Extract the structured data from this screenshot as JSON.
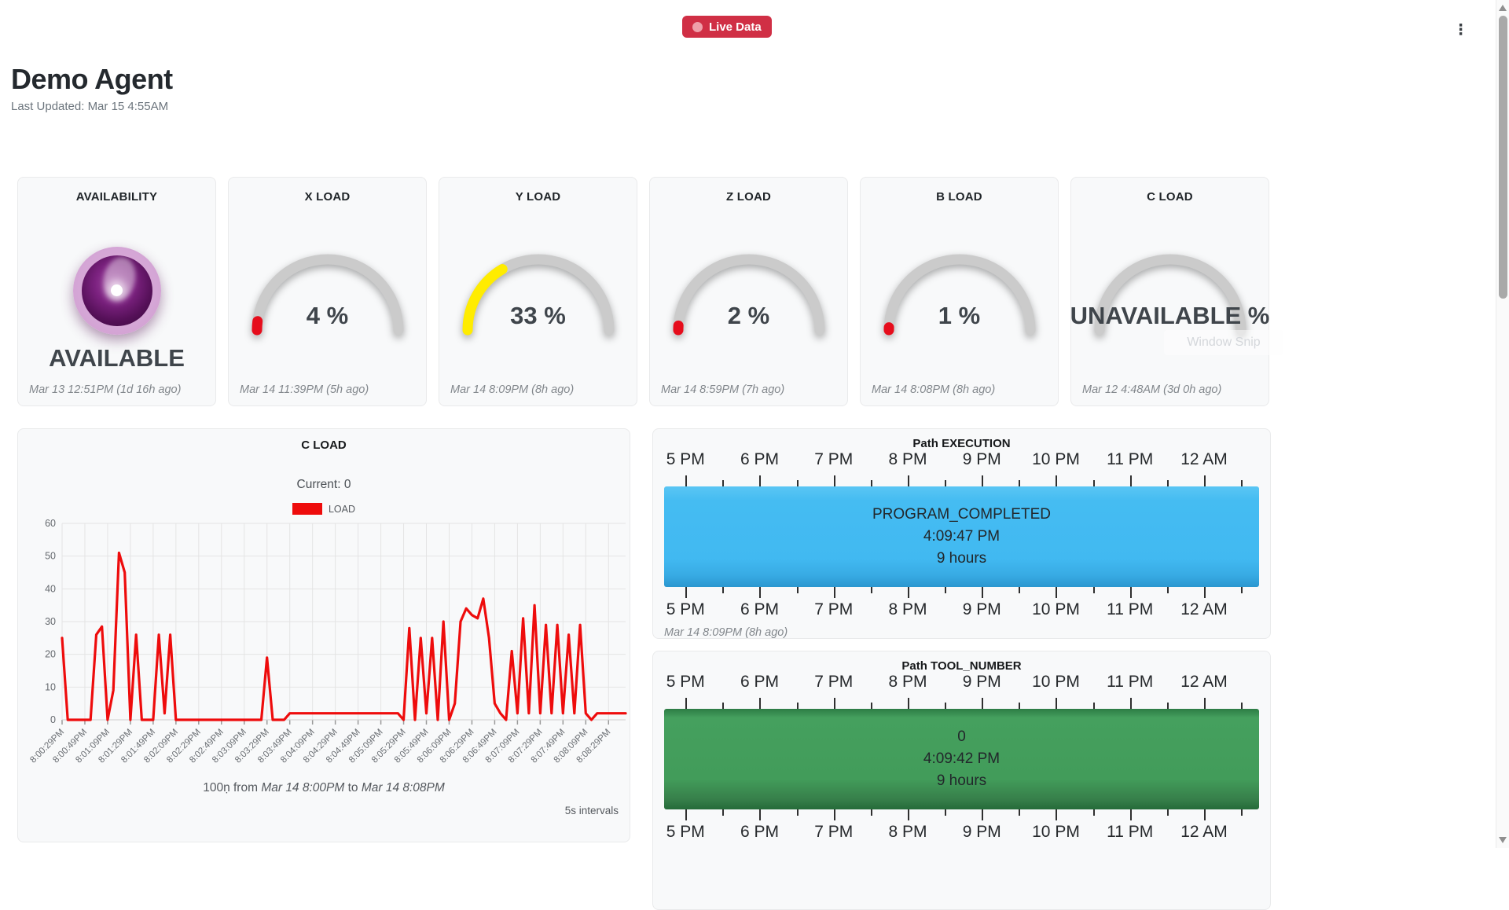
{
  "header": {
    "live_badge": "Live Data",
    "title": "Demo Agent",
    "last_updated": "Last Updated: Mar 15 4:55AM",
    "menu_icon": "kebab-menu",
    "badge_color": "#d02f45"
  },
  "gauges": [
    {
      "title": "AVAILABILITY",
      "type": "orb",
      "value_label": "AVAILABLE",
      "timestamp": "Mar 13 12:51PM (1d 16h ago)"
    },
    {
      "title": "X LOAD",
      "type": "arc",
      "percent": 4,
      "value_label": "4 %",
      "arc_color": "#e60d1c",
      "timestamp": "Mar 14 11:39PM (5h ago)"
    },
    {
      "title": "Y LOAD",
      "type": "arc",
      "percent": 33,
      "value_label": "33 %",
      "arc_color": "#ffec00",
      "timestamp": "Mar 14 8:09PM (8h ago)"
    },
    {
      "title": "Z LOAD",
      "type": "arc",
      "percent": 2,
      "value_label": "2 %",
      "arc_color": "#e60d1c",
      "timestamp": "Mar 14 8:59PM (7h ago)"
    },
    {
      "title": "B LOAD",
      "type": "arc",
      "percent": 1,
      "value_label": "1 %",
      "arc_color": "#e60d1c",
      "timestamp": "Mar 14 8:08PM (8h ago)"
    },
    {
      "title": "C LOAD",
      "type": "arc",
      "percent": 0,
      "value_label": "UNAVAILABLE %",
      "arc_color": null,
      "timestamp": "Mar 12 4:48AM (3d 0h ago)",
      "artifact_text": "Window Snip"
    }
  ],
  "chart_data": {
    "type": "line",
    "title": "C LOAD",
    "current_label": "Current: 0",
    "legend": [
      {
        "label": "LOAD",
        "color": "#ee0c0c"
      }
    ],
    "legend_position": "top",
    "grid": true,
    "ylim": [
      0,
      60
    ],
    "yticks": [
      0,
      10,
      20,
      30,
      40,
      50,
      60
    ],
    "points_per_tick": 4,
    "x_tick_labels": [
      "8:00:29PM",
      "8:00:49PM",
      "8:01:09PM",
      "8:01:29PM",
      "8:01:49PM",
      "8:02:09PM",
      "8:02:29PM",
      "8:02:49PM",
      "8:03:09PM",
      "8:03:29PM",
      "8:03:49PM",
      "8:04:09PM",
      "8:04:29PM",
      "8:04:49PM",
      "8:05:09PM",
      "8:05:29PM",
      "8:05:49PM",
      "8:06:09PM",
      "8:06:29PM",
      "8:06:49PM",
      "8:07:09PM",
      "8:07:29PM",
      "8:07:49PM",
      "8:08:09PM",
      "8:08:29PM"
    ],
    "values": [
      25,
      0,
      0,
      0,
      0,
      0,
      26,
      28.5,
      0,
      9,
      51,
      45,
      0,
      26,
      0,
      0,
      0,
      26,
      2,
      26,
      0,
      0,
      0,
      0,
      0,
      0,
      0,
      0,
      0,
      0,
      0,
      0,
      0,
      0,
      0,
      0,
      19,
      0,
      0,
      0,
      2,
      2,
      2,
      2,
      2,
      2,
      2,
      2,
      2,
      2,
      2,
      2,
      2,
      2,
      2,
      2,
      2,
      2,
      2,
      2,
      0,
      28,
      0,
      25,
      2,
      25,
      0,
      30,
      0,
      5,
      30,
      34,
      32,
      31,
      37,
      25,
      5,
      2,
      0,
      21,
      2,
      31,
      2,
      35,
      2,
      29,
      2,
      29,
      2,
      26,
      2,
      29,
      2,
      0,
      2,
      2,
      2,
      2,
      2,
      2
    ],
    "footer": {
      "prefix": "100ṇ from ",
      "from_date": "Mar 14 8:00PM",
      "mid": " to ",
      "to_date": "Mar 14 8:08PM"
    },
    "interval_note": "5s intervals"
  },
  "timelines": [
    {
      "title": "Path EXECUTION",
      "axis_labels": [
        "5 PM",
        "6 PM",
        "7 PM",
        "8 PM",
        "9 PM",
        "10 PM",
        "11 PM",
        "12 AM"
      ],
      "bar_color": "blue",
      "bar_hex": "#41b9f1",
      "event": {
        "label": "PROGRAM_COMPLETED",
        "time": "4:09:47 PM",
        "duration": "9 hours"
      },
      "timestamp": "Mar 14 8:09PM (8h ago)"
    },
    {
      "title": "Path TOOL_NUMBER",
      "axis_labels": [
        "5 PM",
        "6 PM",
        "7 PM",
        "8 PM",
        "9 PM",
        "10 PM",
        "11 PM",
        "12 AM"
      ],
      "bar_color": "green",
      "bar_hex": "#429c5a",
      "event": {
        "label": "0",
        "time": "4:09:42 PM",
        "duration": "9 hours"
      },
      "timestamp": ""
    }
  ],
  "scrollbar": {
    "up_icon": "triangle-up",
    "down_icon": "triangle-down"
  }
}
